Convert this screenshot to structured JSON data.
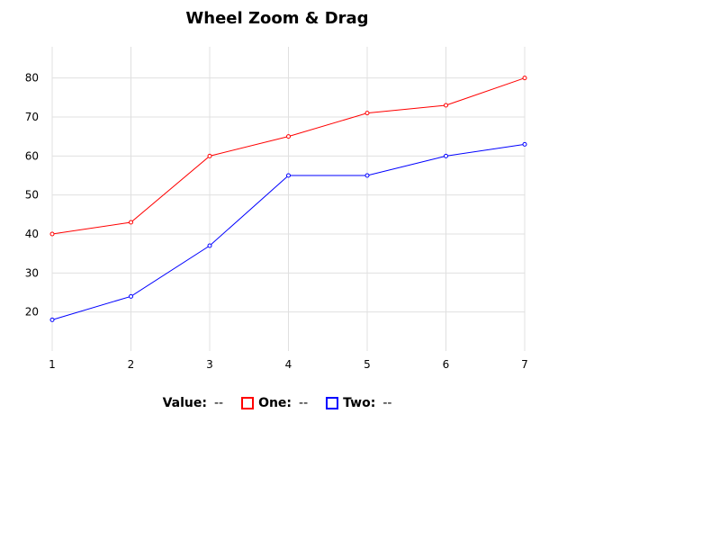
{
  "chart_data": {
    "type": "line",
    "title": "Wheel Zoom & Drag",
    "x": [
      1,
      2,
      3,
      4,
      5,
      6,
      7
    ],
    "xlim": [
      1,
      7
    ],
    "ylim": [
      10,
      88
    ],
    "x_ticks": [
      1,
      2,
      3,
      4,
      5,
      6,
      7
    ],
    "y_ticks": [
      20,
      30,
      40,
      50,
      60,
      70,
      80
    ],
    "grid": true,
    "legend_position": "bottom",
    "series": [
      {
        "name": "One",
        "color": "#ff0000",
        "values": [
          40,
          43,
          60,
          65,
          71,
          73,
          80
        ]
      },
      {
        "name": "Two",
        "color": "#0000ff",
        "values": [
          18,
          24,
          37,
          55,
          55,
          60,
          63
        ]
      }
    ]
  },
  "legend": {
    "value_label": "Value:",
    "value_readout": "--",
    "items": [
      {
        "label": "One:",
        "readout": "--",
        "color": "#ff0000"
      },
      {
        "label": "Two:",
        "readout": "--",
        "color": "#0000ff"
      }
    ]
  }
}
